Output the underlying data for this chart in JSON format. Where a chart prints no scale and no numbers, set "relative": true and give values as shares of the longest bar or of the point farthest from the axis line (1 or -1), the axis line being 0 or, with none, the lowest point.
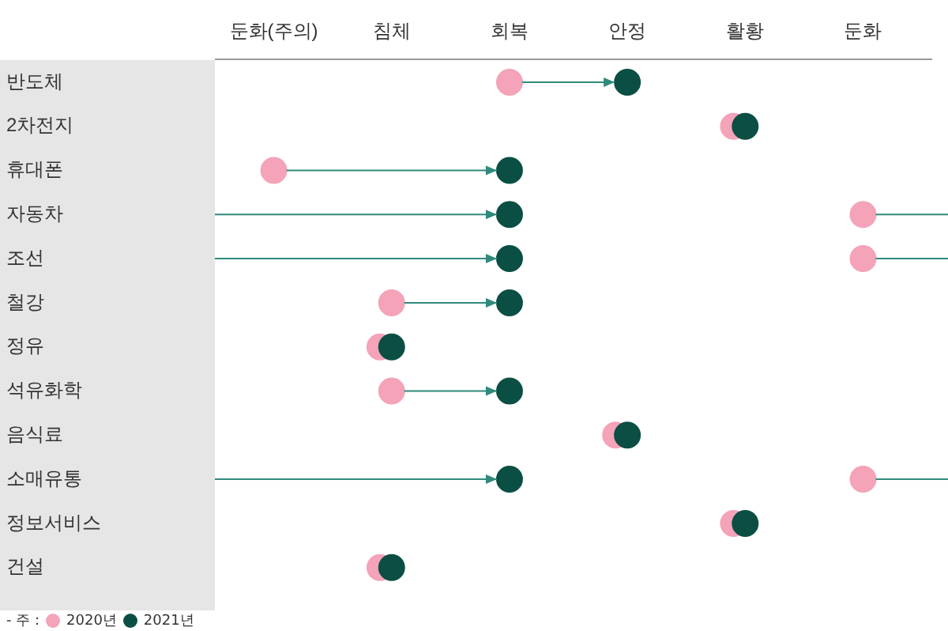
{
  "chart_data": {
    "type": "scatter",
    "orientation": "horizontal",
    "relative": true,
    "categories": [
      "반도체",
      "2차전지",
      "휴대폰",
      "자동차",
      "조선",
      "철강",
      "정유",
      "석유화학",
      "음식료",
      "소매유통",
      "정보서비스",
      "건설"
    ],
    "series": [
      {
        "name": "2020년",
        "color": "#f4a3b8",
        "values": [
          0.4,
          0.78,
          0,
          1,
          1,
          0.2,
          0.18,
          0.2,
          0.58,
          1,
          0.78,
          0.18
        ]
      },
      {
        "name": "2021년",
        "color": "#0b4f44",
        "values": [
          0.6,
          0.8,
          0.4,
          0.4,
          0.4,
          0.4,
          0.2,
          0.4,
          0.6,
          0.4,
          0.8,
          0.2
        ]
      }
    ],
    "annotations": [
      "둔화(주의)",
      "침체",
      "회복",
      "안정",
      "활황",
      "둔화",
      "- 주 :"
    ],
    "grid": false,
    "marker": "circle",
    "legend": "bottom left"
  }
}
